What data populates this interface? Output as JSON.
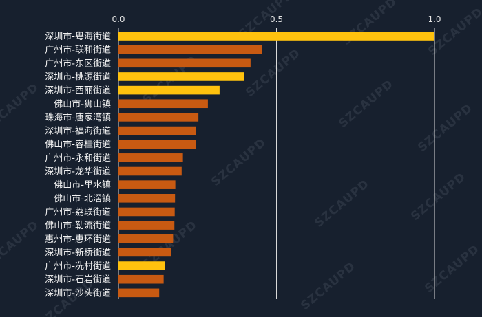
{
  "chart_data": {
    "type": "bar",
    "orientation": "horizontal",
    "title": "",
    "xlabel": "",
    "ylabel": "",
    "xlim": [
      0,
      1.0
    ],
    "x_ticks": [
      0,
      0.5,
      1.0
    ],
    "x_tick_labels": [
      "0.0",
      "0.5",
      "1.0"
    ],
    "x_axis_position": "top",
    "grid": "vertical lines at ticks",
    "categories": [
      "深圳市-粤海街道",
      "广州市-联和街道",
      "广州市-东区街道",
      "深圳市-桃源街道",
      "深圳市-西丽街道",
      "佛山市-狮山镇",
      "珠海市-唐家湾镇",
      "深圳市-福海街道",
      "佛山市-容桂街道",
      "广州市-永和街道",
      "深圳市-龙华街道",
      "佛山市-里水镇",
      "佛山市-北滘镇",
      "广州市-荔联街道",
      "佛山市-勒流街道",
      "惠州市-惠环街道",
      "深圳市-新桥街道",
      "广州市-冼村街道",
      "深圳市-石岩街道",
      "深圳市-沙头街道"
    ],
    "values": [
      1.0,
      0.455,
      0.418,
      0.398,
      0.32,
      0.283,
      0.253,
      0.245,
      0.244,
      0.204,
      0.2,
      0.18,
      0.179,
      0.178,
      0.177,
      0.173,
      0.166,
      0.148,
      0.143,
      0.129
    ],
    "highlighted": [
      true,
      false,
      false,
      true,
      true,
      false,
      false,
      false,
      false,
      false,
      false,
      false,
      false,
      false,
      false,
      false,
      false,
      true,
      false,
      false
    ],
    "colors": {
      "highlight": "#ffc20e",
      "normal": "#c85a12",
      "background": "#17202e",
      "grid": "#d9d9d9"
    },
    "watermark": "SZCAUPD"
  }
}
